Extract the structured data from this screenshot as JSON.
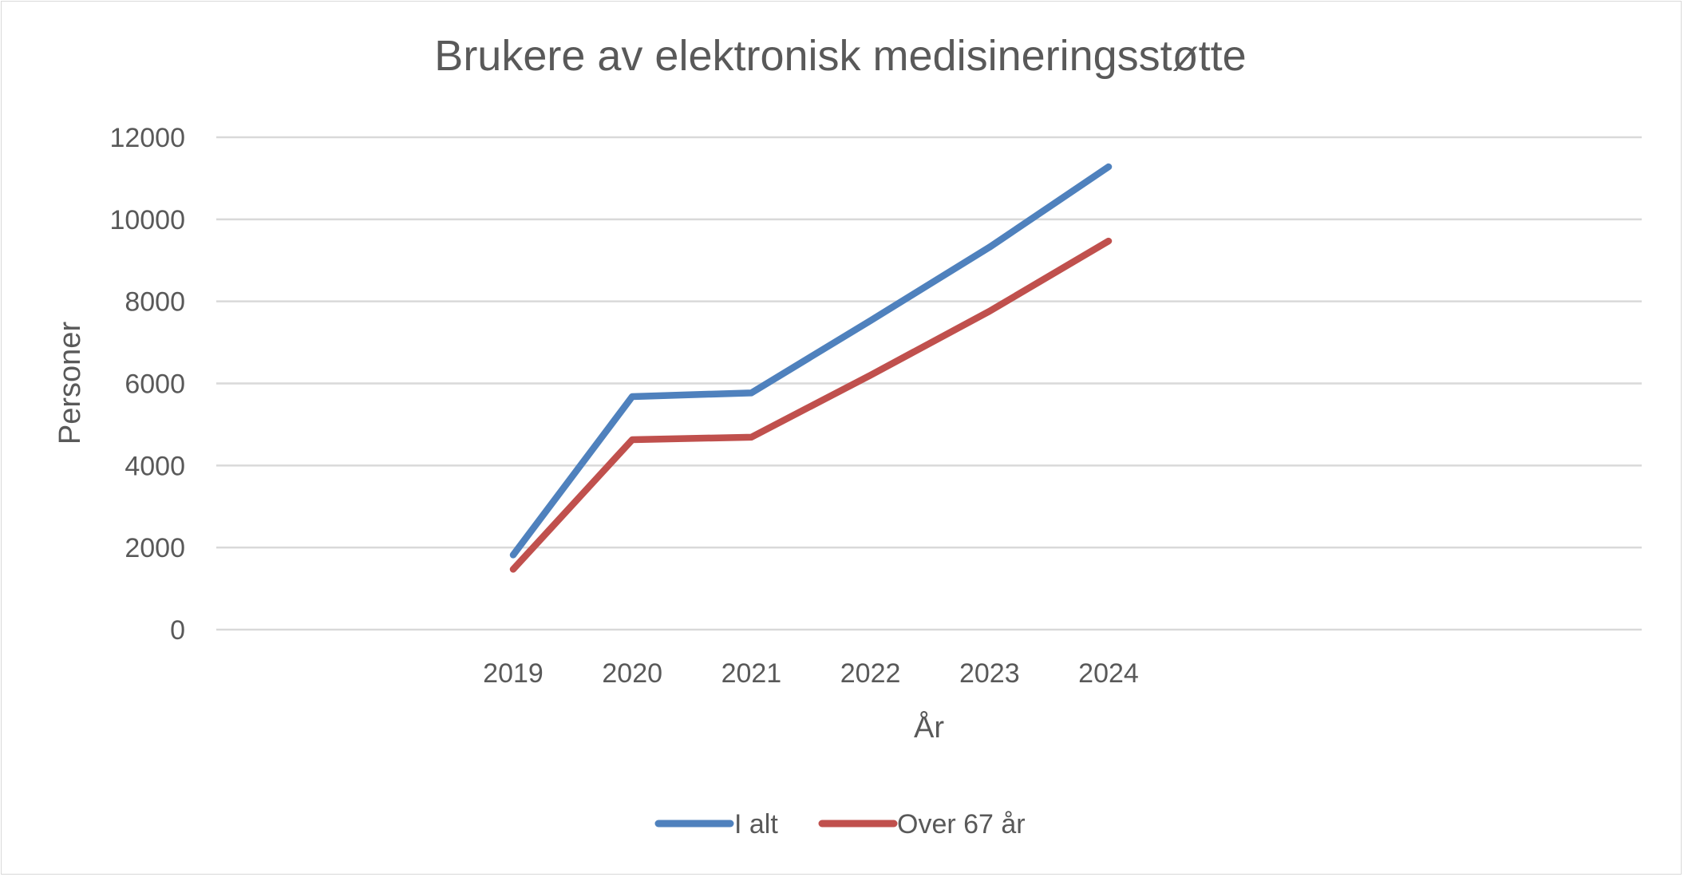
{
  "chart_data": {
    "type": "line",
    "title": "Brukere av elektronisk medisineringsstøtte",
    "xlabel": "År",
    "ylabel": "Personer",
    "categories": [
      "2019",
      "2020",
      "2021",
      "2022",
      "2023",
      "2024"
    ],
    "series": [
      {
        "name": "I alt",
        "color": "#4f81bd",
        "values": [
          1820,
          5680,
          5770,
          7530,
          9320,
          11280
        ]
      },
      {
        "name": "Over 67 år",
        "color": "#c0504d",
        "values": [
          1470,
          4630,
          4690,
          6200,
          7760,
          9470
        ]
      }
    ],
    "yticks": [
      "0",
      "2000",
      "4000",
      "6000",
      "8000",
      "10000",
      "12000"
    ],
    "ylim": [
      0,
      12000
    ],
    "grid": true,
    "legend_position": "bottom"
  }
}
